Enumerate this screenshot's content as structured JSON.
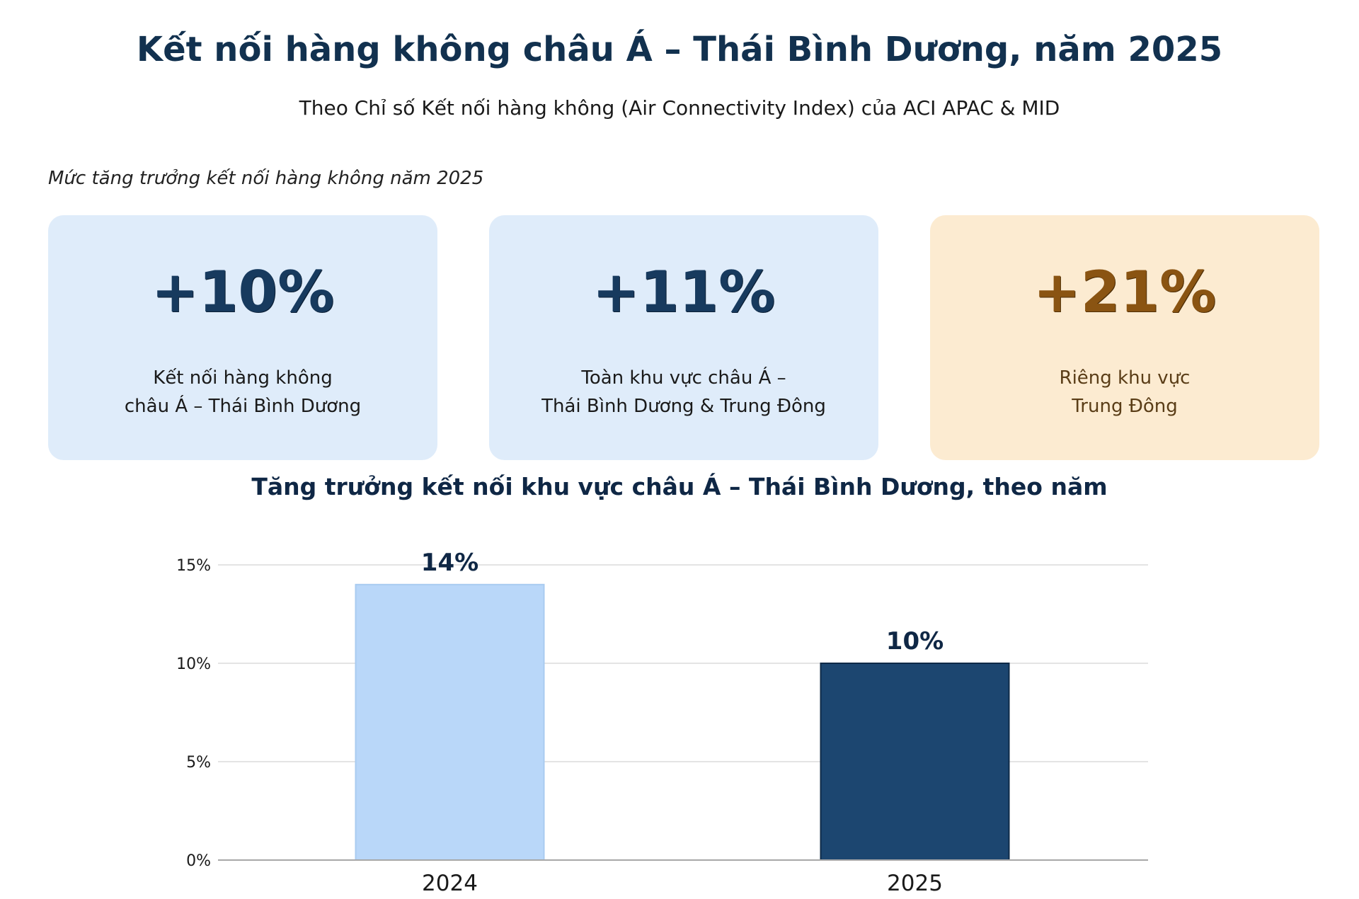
{
  "header": {
    "title": "Kết nối hàng không châu Á – Thái Bình Dương, năm 2025",
    "subtitle": "Theo Chỉ số Kết nối hàng không (Air Connectivity Index) của ACI APAC & MID"
  },
  "section_label": "Mức tăng trưởng kết nối hàng không năm 2025",
  "cards": [
    {
      "value": "+10%",
      "label_lines": [
        "Kết nối hàng không",
        "châu Á – Thái Bình Dương"
      ],
      "background": "#dfecfa"
    },
    {
      "value": "+11%",
      "label_lines": [
        "Toàn khu vực châu Á –",
        "Thái Bình Dương & Trung Đông"
      ],
      "background": "#dfecfa"
    },
    {
      "value": "+21%",
      "label_lines": [
        "Riêng khu vực",
        "Trung Đông"
      ],
      "background": "#fcebd1"
    }
  ],
  "chart_data": {
    "type": "bar",
    "title": "Tăng trưởng kết nối khu vực châu Á – Thái Bình Dương, theo năm",
    "categories": [
      "2024",
      "2025"
    ],
    "values": [
      14,
      10
    ],
    "value_labels": [
      "14%",
      "10%"
    ],
    "colors": [
      "#b9d7f9",
      "#1c4670"
    ],
    "ylim": [
      0,
      15
    ],
    "yticks": [
      0,
      5,
      10,
      15
    ],
    "ytick_labels": [
      "0%",
      "5%",
      "10%",
      "15%"
    ],
    "grid": true,
    "xlabel": "",
    "ylabel": ""
  }
}
